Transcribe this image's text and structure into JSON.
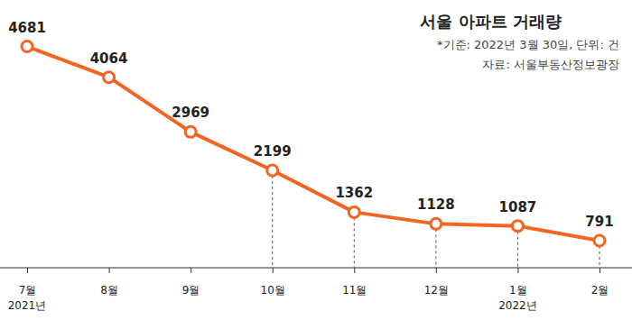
{
  "chart_data": {
    "type": "line",
    "title": "서울 아파트 거래량",
    "subtitle": "*기준: 2022년 3월 30일, 단위: 건",
    "source": "자료: 서울부동산정보광장",
    "categories": [
      "7월",
      "8월",
      "9월",
      "10월",
      "11월",
      "12월",
      "1월",
      "2월"
    ],
    "year_labels": [
      "2021년",
      null,
      null,
      null,
      null,
      null,
      "2022년",
      null
    ],
    "values": [
      4681,
      4064,
      2969,
      2199,
      1362,
      1128,
      1087,
      791
    ],
    "color": "#f26522",
    "marker": "circle",
    "line_style": "solid",
    "data_labels": true,
    "tick_labels": "x",
    "ylim": [
      250,
      5250
    ]
  }
}
